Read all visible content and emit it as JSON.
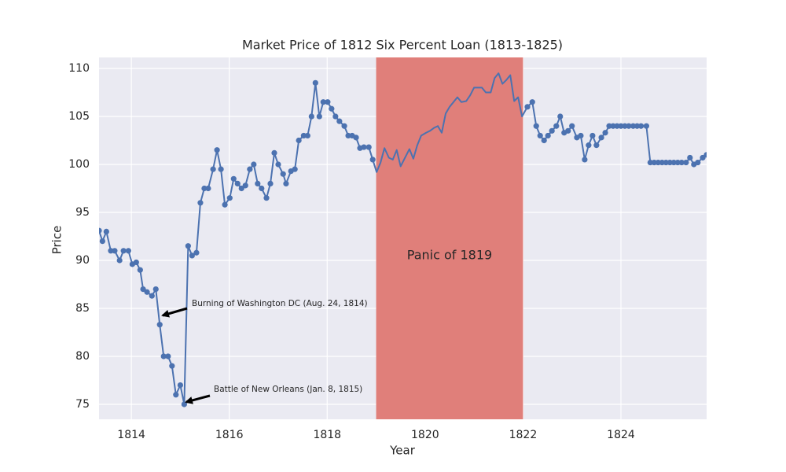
{
  "chart_data": {
    "type": "line",
    "title": "Market Price of 1812 Six Percent Loan (1813-1825)",
    "x_label": "Year",
    "y_label": "Price",
    "x": [
      1813.34,
      1813.41,
      1813.49,
      1813.58,
      1813.66,
      1813.76,
      1813.84,
      1813.94,
      1814.02,
      1814.1,
      1814.18,
      1814.24,
      1814.32,
      1814.42,
      1814.5,
      1814.58,
      1814.66,
      1814.75,
      1814.83,
      1814.91,
      1815.0,
      1815.08,
      1815.16,
      1815.24,
      1815.33,
      1815.41,
      1815.49,
      1815.57,
      1815.67,
      1815.75,
      1815.83,
      1815.91,
      1816.01,
      1816.09,
      1816.17,
      1816.25,
      1816.33,
      1816.42,
      1816.5,
      1816.58,
      1816.66,
      1816.76,
      1816.84,
      1816.92,
      1817.0,
      1817.1,
      1817.16,
      1817.26,
      1817.34,
      1817.42,
      1817.52,
      1817.6,
      1817.68,
      1817.76,
      1817.84,
      1817.92,
      1818.01,
      1818.09,
      1818.17,
      1818.25,
      1818.35,
      1818.43,
      1818.51,
      1818.59,
      1818.67,
      1818.75,
      1818.85,
      1818.93,
      1819.01,
      1819.09,
      1819.17,
      1819.26,
      1819.34,
      1819.42,
      1819.5,
      1819.59,
      1819.68,
      1819.76,
      1819.84,
      1819.92,
      1820.02,
      1820.1,
      1820.18,
      1820.26,
      1820.34,
      1820.42,
      1820.5,
      1820.58,
      1820.66,
      1820.74,
      1820.84,
      1820.92,
      1821.0,
      1821.08,
      1821.16,
      1821.24,
      1821.34,
      1821.42,
      1821.5,
      1821.58,
      1821.66,
      1821.74,
      1821.82,
      1821.9,
      1821.98,
      1822.09,
      1822.19,
      1822.27,
      1822.35,
      1822.43,
      1822.51,
      1822.59,
      1822.68,
      1822.76,
      1822.84,
      1822.92,
      1823.0,
      1823.1,
      1823.18,
      1823.26,
      1823.34,
      1823.42,
      1823.5,
      1823.6,
      1823.68,
      1823.76,
      1823.84,
      1823.92,
      1824.0,
      1824.08,
      1824.16,
      1824.25,
      1824.33,
      1824.41,
      1824.52,
      1824.6,
      1824.68,
      1824.76,
      1824.84,
      1824.92,
      1825.0,
      1825.08,
      1825.16,
      1825.24,
      1825.33,
      1825.41,
      1825.49,
      1825.57,
      1825.67,
      1825.75
    ],
    "series": [
      {
        "color": "#4c72b0",
        "values": [
          93.1,
          92,
          93,
          91,
          91,
          90,
          91,
          91,
          89.6,
          89.8,
          89,
          87,
          86.7,
          86.3,
          87,
          83.3,
          80,
          80,
          79,
          76,
          77,
          75,
          91.5,
          90.5,
          90.8,
          96,
          97.5,
          97.5,
          99.5,
          101.5,
          99.5,
          95.8,
          96.5,
          98.5,
          98,
          97.5,
          97.8,
          99.5,
          100,
          98,
          97.5,
          96.5,
          98,
          101.2,
          100,
          99,
          98,
          99.3,
          99.5,
          102.5,
          103,
          103,
          105,
          108.5,
          105,
          106.5,
          106.5,
          105.8,
          105,
          104.5,
          104,
          103,
          103,
          102.8,
          101.7,
          101.8,
          101.8,
          100.5,
          99.2,
          100.2,
          101.7,
          100.7,
          100.5,
          101.5,
          99.8,
          100.7,
          101.6,
          100.6,
          102,
          103,
          103.3,
          103.5,
          103.8,
          104,
          103.3,
          105.3,
          106,
          106.5,
          107,
          106.5,
          106.6,
          107.2,
          108,
          108,
          108,
          107.5,
          107.5,
          109,
          109.5,
          108.4,
          108.8,
          109.3,
          106.6,
          107,
          105,
          106,
          106.5,
          104,
          103,
          102.5,
          103,
          103.5,
          104,
          105,
          103.3,
          103.5,
          104,
          102.8,
          103,
          100.5,
          102,
          103,
          102,
          102.8,
          103.3,
          104,
          104,
          104,
          104,
          104,
          104,
          104,
          104,
          104,
          104,
          100.2,
          100.2,
          100.2,
          100.2,
          100.2,
          100.2,
          100.2,
          100.2,
          100.2,
          100.2,
          100.7,
          100,
          100.2,
          100.7,
          101
        ]
      }
    ],
    "xlim": [
      1813.34,
      1825.75
    ],
    "ylim": [
      73.44,
      111.15
    ],
    "xticks": [
      1814,
      1816,
      1818,
      1820,
      1822,
      1824
    ],
    "yticks": [
      75,
      80,
      85,
      90,
      95,
      100,
      105,
      110
    ],
    "grid": true,
    "span": {
      "start": 1819,
      "end": 1822,
      "label": "Panic of 1819",
      "color": "#e07f7a"
    },
    "annotations": [
      {
        "text": "Burning of Washington DC (Aug. 24, 1814)"
      },
      {
        "text": "Battle of New Orleans (Jan. 8, 1815)"
      }
    ]
  }
}
